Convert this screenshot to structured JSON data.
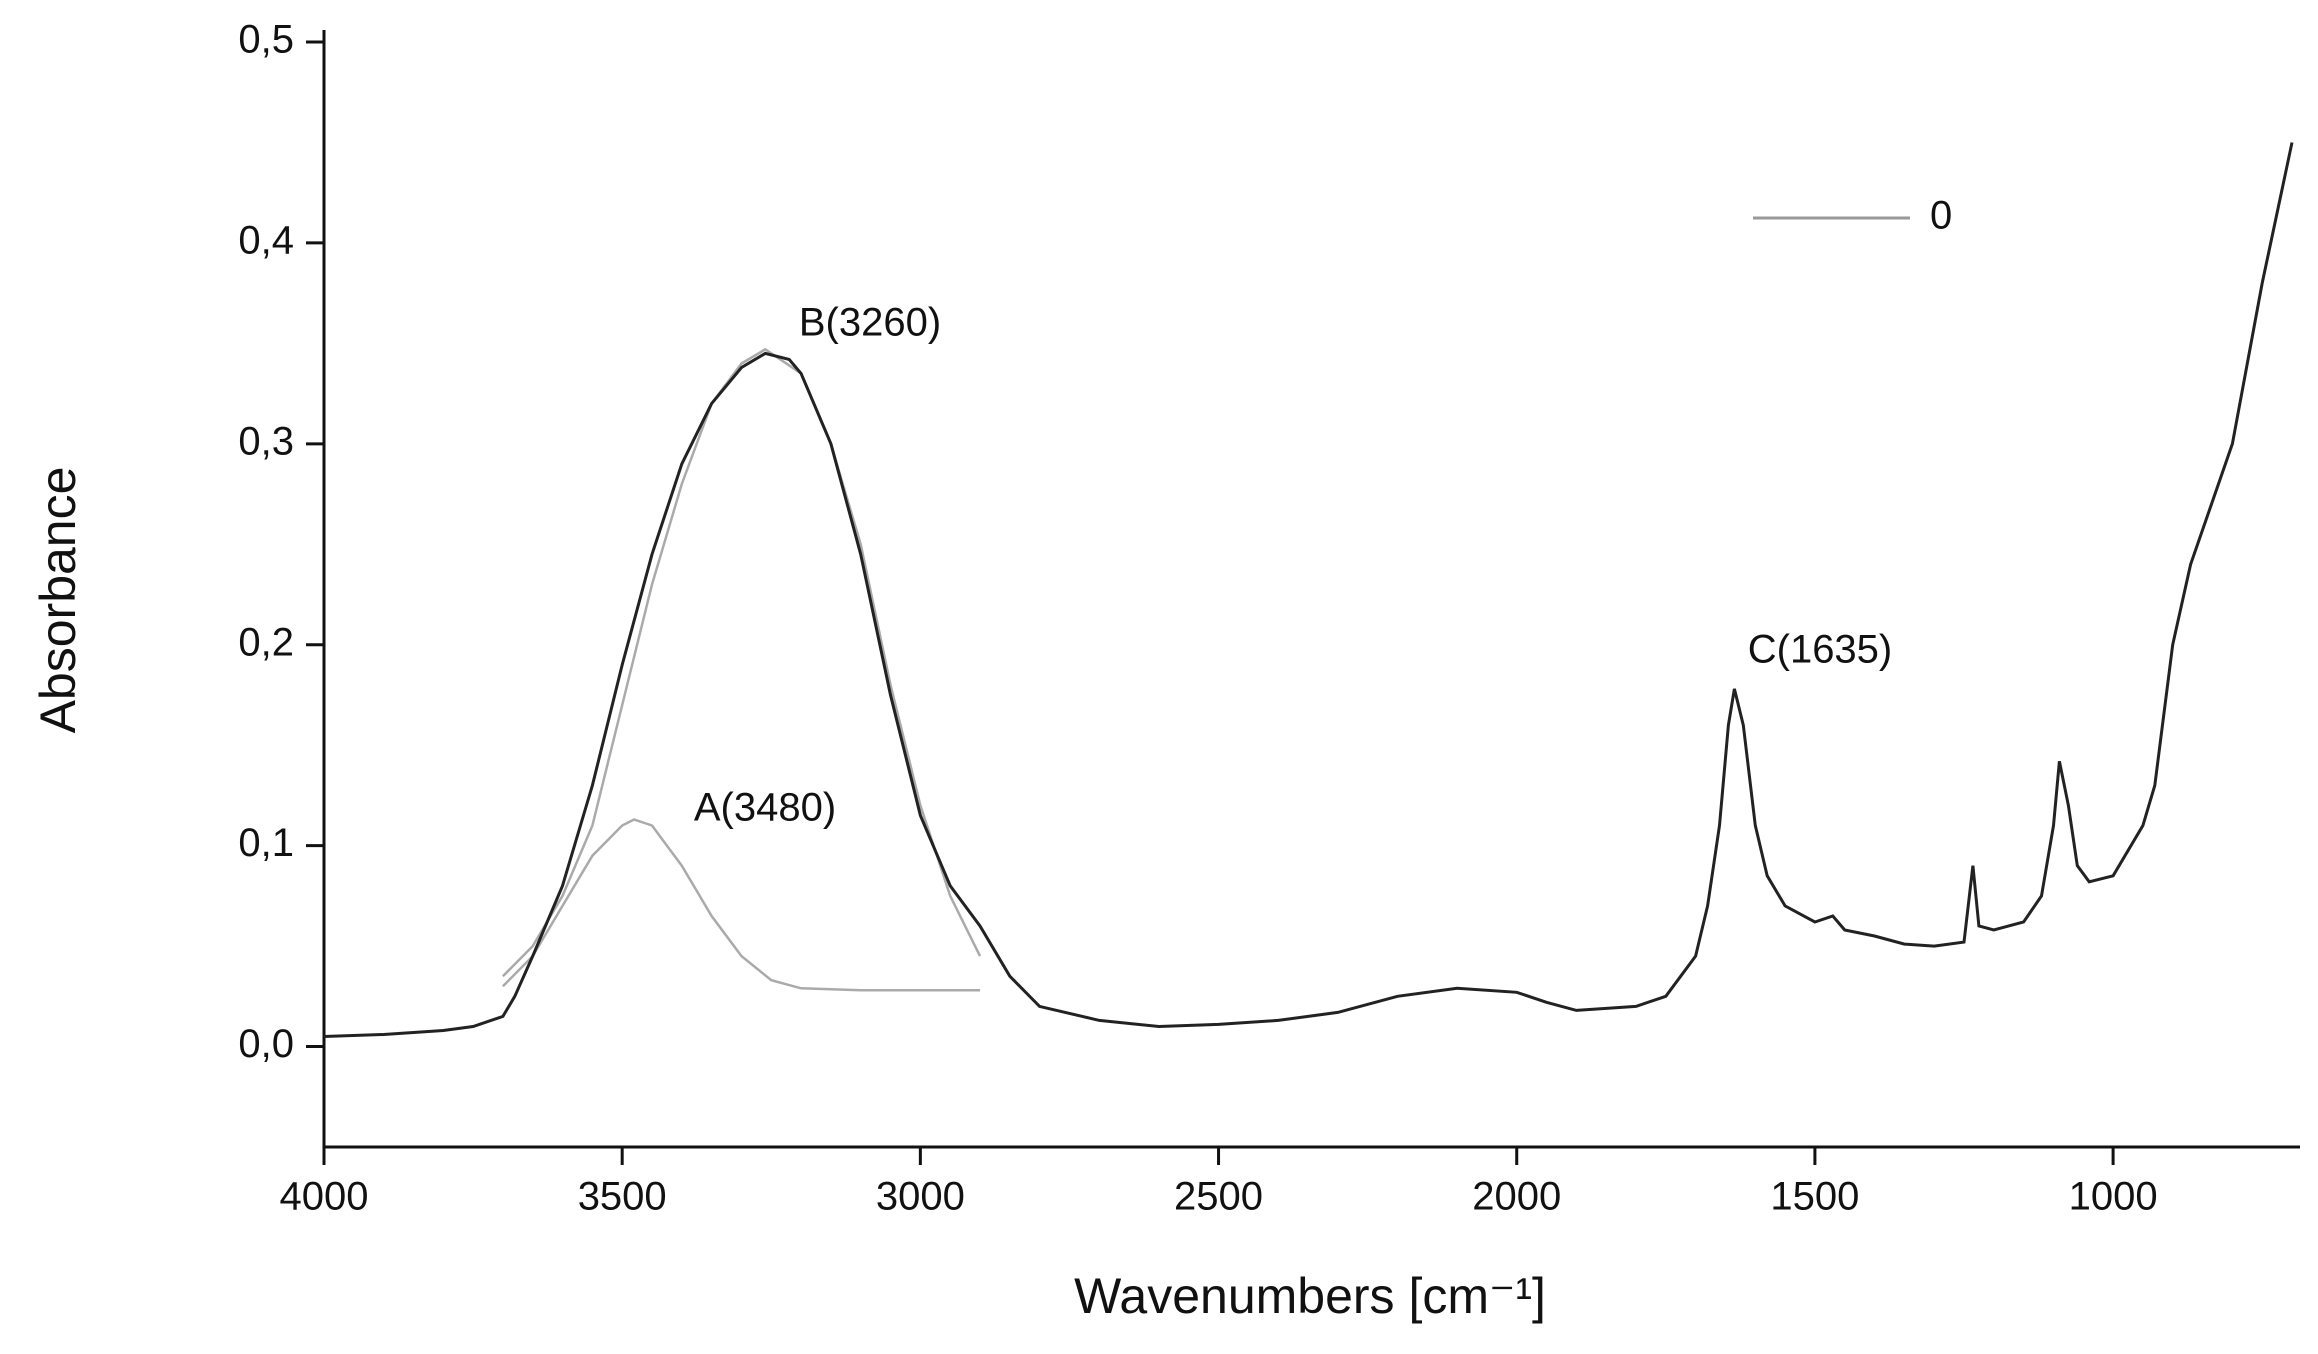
{
  "chart_data": {
    "type": "line",
    "x_label": "Wavenumbers [cm⁻¹]",
    "y_label": "Absorbance",
    "xlim": [
      4000,
      700
    ],
    "ylim": [
      -0.05,
      0.5
    ],
    "xticks": [
      4000,
      3500,
      3000,
      2500,
      2000,
      1500,
      1000
    ],
    "yticks": [
      {
        "value": 0,
        "label": "0,0"
      },
      {
        "value": 0.1,
        "label": "0,1"
      },
      {
        "value": 0.2,
        "label": "0,2"
      },
      {
        "value": 0.3,
        "label": "0,3"
      },
      {
        "value": 0.4,
        "label": "0,4"
      },
      {
        "value": 0.5,
        "label": "0,5"
      }
    ],
    "legend_position": "upper right",
    "annotations": [
      "B(3260)",
      "A(3480)",
      "C(1635)"
    ],
    "series": [
      {
        "name": "0",
        "color": "#222222",
        "legend_color": "#999999",
        "x": [
          4000,
          3900,
          3800,
          3750,
          3700,
          3680,
          3650,
          3600,
          3550,
          3500,
          3450,
          3400,
          3350,
          3300,
          3260,
          3220,
          3200,
          3150,
          3100,
          3050,
          3000,
          2950,
          2900,
          2850,
          2800,
          2700,
          2600,
          2500,
          2400,
          2300,
          2200,
          2100,
          2000,
          1950,
          1900,
          1800,
          1750,
          1700,
          1680,
          1660,
          1645,
          1635,
          1620,
          1600,
          1580,
          1550,
          1500,
          1470,
          1450,
          1400,
          1350,
          1300,
          1250,
          1235,
          1225,
          1200,
          1150,
          1120,
          1100,
          1090,
          1075,
          1060,
          1040,
          1000,
          950,
          930,
          900,
          870,
          800,
          750,
          700
        ],
        "values": [
          0.005,
          0.006,
          0.008,
          0.01,
          0.015,
          0.025,
          0.045,
          0.08,
          0.13,
          0.19,
          0.245,
          0.29,
          0.32,
          0.338,
          0.345,
          0.342,
          0.335,
          0.3,
          0.245,
          0.175,
          0.115,
          0.08,
          0.06,
          0.035,
          0.02,
          0.013,
          0.01,
          0.011,
          0.013,
          0.017,
          0.025,
          0.029,
          0.027,
          0.022,
          0.018,
          0.02,
          0.025,
          0.045,
          0.07,
          0.11,
          0.16,
          0.178,
          0.16,
          0.11,
          0.085,
          0.07,
          0.062,
          0.065,
          0.058,
          0.055,
          0.051,
          0.05,
          0.052,
          0.09,
          0.06,
          0.058,
          0.062,
          0.075,
          0.11,
          0.142,
          0.12,
          0.09,
          0.082,
          0.085,
          0.11,
          0.13,
          0.2,
          0.24,
          0.3,
          0.38,
          0.45
        ]
      },
      {
        "color": "#aaaaaa",
        "x": [
          3700,
          3650,
          3600,
          3550,
          3500,
          3480,
          3450,
          3400,
          3350,
          3300,
          3250,
          3200,
          3100,
          2900
        ],
        "values": [
          0.03,
          0.045,
          0.07,
          0.095,
          0.11,
          0.113,
          0.11,
          0.09,
          0.065,
          0.045,
          0.033,
          0.029,
          0.028,
          0.028
        ]
      },
      {
        "color": "#aaaaaa",
        "x": [
          3700,
          3650,
          3600,
          3550,
          3500,
          3450,
          3400,
          3350,
          3300,
          3260,
          3200,
          3150,
          3100,
          3050,
          3000,
          2950,
          2900
        ],
        "values": [
          0.035,
          0.05,
          0.075,
          0.11,
          0.17,
          0.23,
          0.28,
          0.32,
          0.34,
          0.347,
          0.335,
          0.3,
          0.25,
          0.18,
          0.12,
          0.075,
          0.045
        ]
      }
    ]
  }
}
